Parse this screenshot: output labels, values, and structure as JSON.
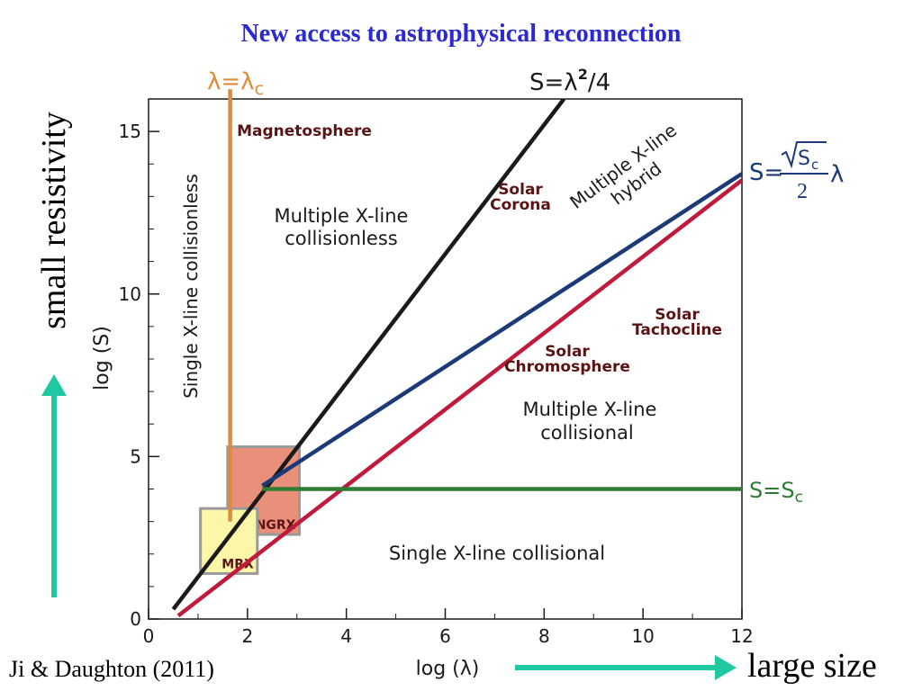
{
  "slide": {
    "title": "New access to astrophysical reconnection",
    "citation": "Ji & Daughton (2011)",
    "left_caption": "small resistivity",
    "bottom_caption": "large size",
    "colors": {
      "title": "#2a2ad0",
      "arrow": "#1fc8a0"
    }
  },
  "chart_data": {
    "type": "line",
    "xlabel": "log (λ)",
    "ylabel": "log (S)",
    "xlim": [
      0,
      12
    ],
    "ylim": [
      0,
      16
    ],
    "xticks": [
      0,
      2,
      4,
      6,
      8,
      10,
      12
    ],
    "yticks": [
      0,
      5,
      10,
      15
    ],
    "grid": false,
    "series": [
      {
        "name": "S=λ²/4",
        "color": "#1a1a1a",
        "points": [
          [
            0.5,
            0.3
          ],
          [
            8.4,
            16
          ]
        ]
      },
      {
        "name": "S=√Sc/2 λ (upper)",
        "color": "#1c3a78",
        "points": [
          [
            2.3,
            4.1
          ],
          [
            12,
            13.7
          ]
        ]
      },
      {
        "name": "S=√Sc/2 λ (lower)",
        "color": "#c01a3c",
        "points": [
          [
            0.6,
            0.1
          ],
          [
            12,
            13.5
          ]
        ]
      },
      {
        "name": "S=Sc",
        "color": "#2e7d32",
        "points": [
          [
            2.3,
            4.0
          ],
          [
            12,
            4.0
          ]
        ]
      },
      {
        "name": "λ=λc",
        "color": "#e08a3c",
        "points": [
          [
            1.65,
            3.0
          ],
          [
            1.65,
            16.3
          ]
        ]
      }
    ],
    "line_labels": {
      "lambda_c": {
        "pre": "λ=λ",
        "sub": "c",
        "color": "#e08a3c"
      },
      "s_lambda2": {
        "pre": "S=λ",
        "sup": "2",
        "post": "/4",
        "color": "#1a1a1a"
      },
      "s_sqrt_num_prefix": "S=",
      "s_sqrt_num": "S",
      "s_sqrt_sub": "c",
      "s_sqrt_den": "2",
      "s_sqrt_lambda": "λ",
      "s_sqrt_color": "#1c3a78",
      "s_c": {
        "pre": "S=S",
        "sub": "c",
        "color": "#2e7d32"
      }
    },
    "boxes": [
      {
        "label": "NGRX",
        "x0": 1.6,
        "x1": 3.05,
        "y0": 2.6,
        "y1": 5.3,
        "fill": "#e9907a",
        "stroke": "#9a9a9a"
      },
      {
        "label": "MRX",
        "x0": 1.05,
        "x1": 2.2,
        "y0": 1.4,
        "y1": 3.4,
        "fill": "#fbf6a8",
        "stroke": "#9a9a9a"
      }
    ],
    "region_labels": {
      "single_collisionless": "Single X-line collisionless",
      "multiple_collisionless": [
        "Multiple X-line",
        "collisionless"
      ],
      "multiple_hybrid": [
        "Multiple X-line",
        "hybrid"
      ],
      "multiple_collisional": [
        "Multiple X-line",
        "collisional"
      ],
      "single_collisional": "Single X-line collisional"
    },
    "annotations": {
      "magnetosphere": "Magnetosphere",
      "solar_corona": [
        "Solar",
        "Corona"
      ],
      "solar_tachocline": [
        "Solar",
        "Tachocline"
      ],
      "solar_chromosphere": [
        "Solar",
        "Chromosphere"
      ]
    },
    "annotation_color": "#5a1414"
  }
}
